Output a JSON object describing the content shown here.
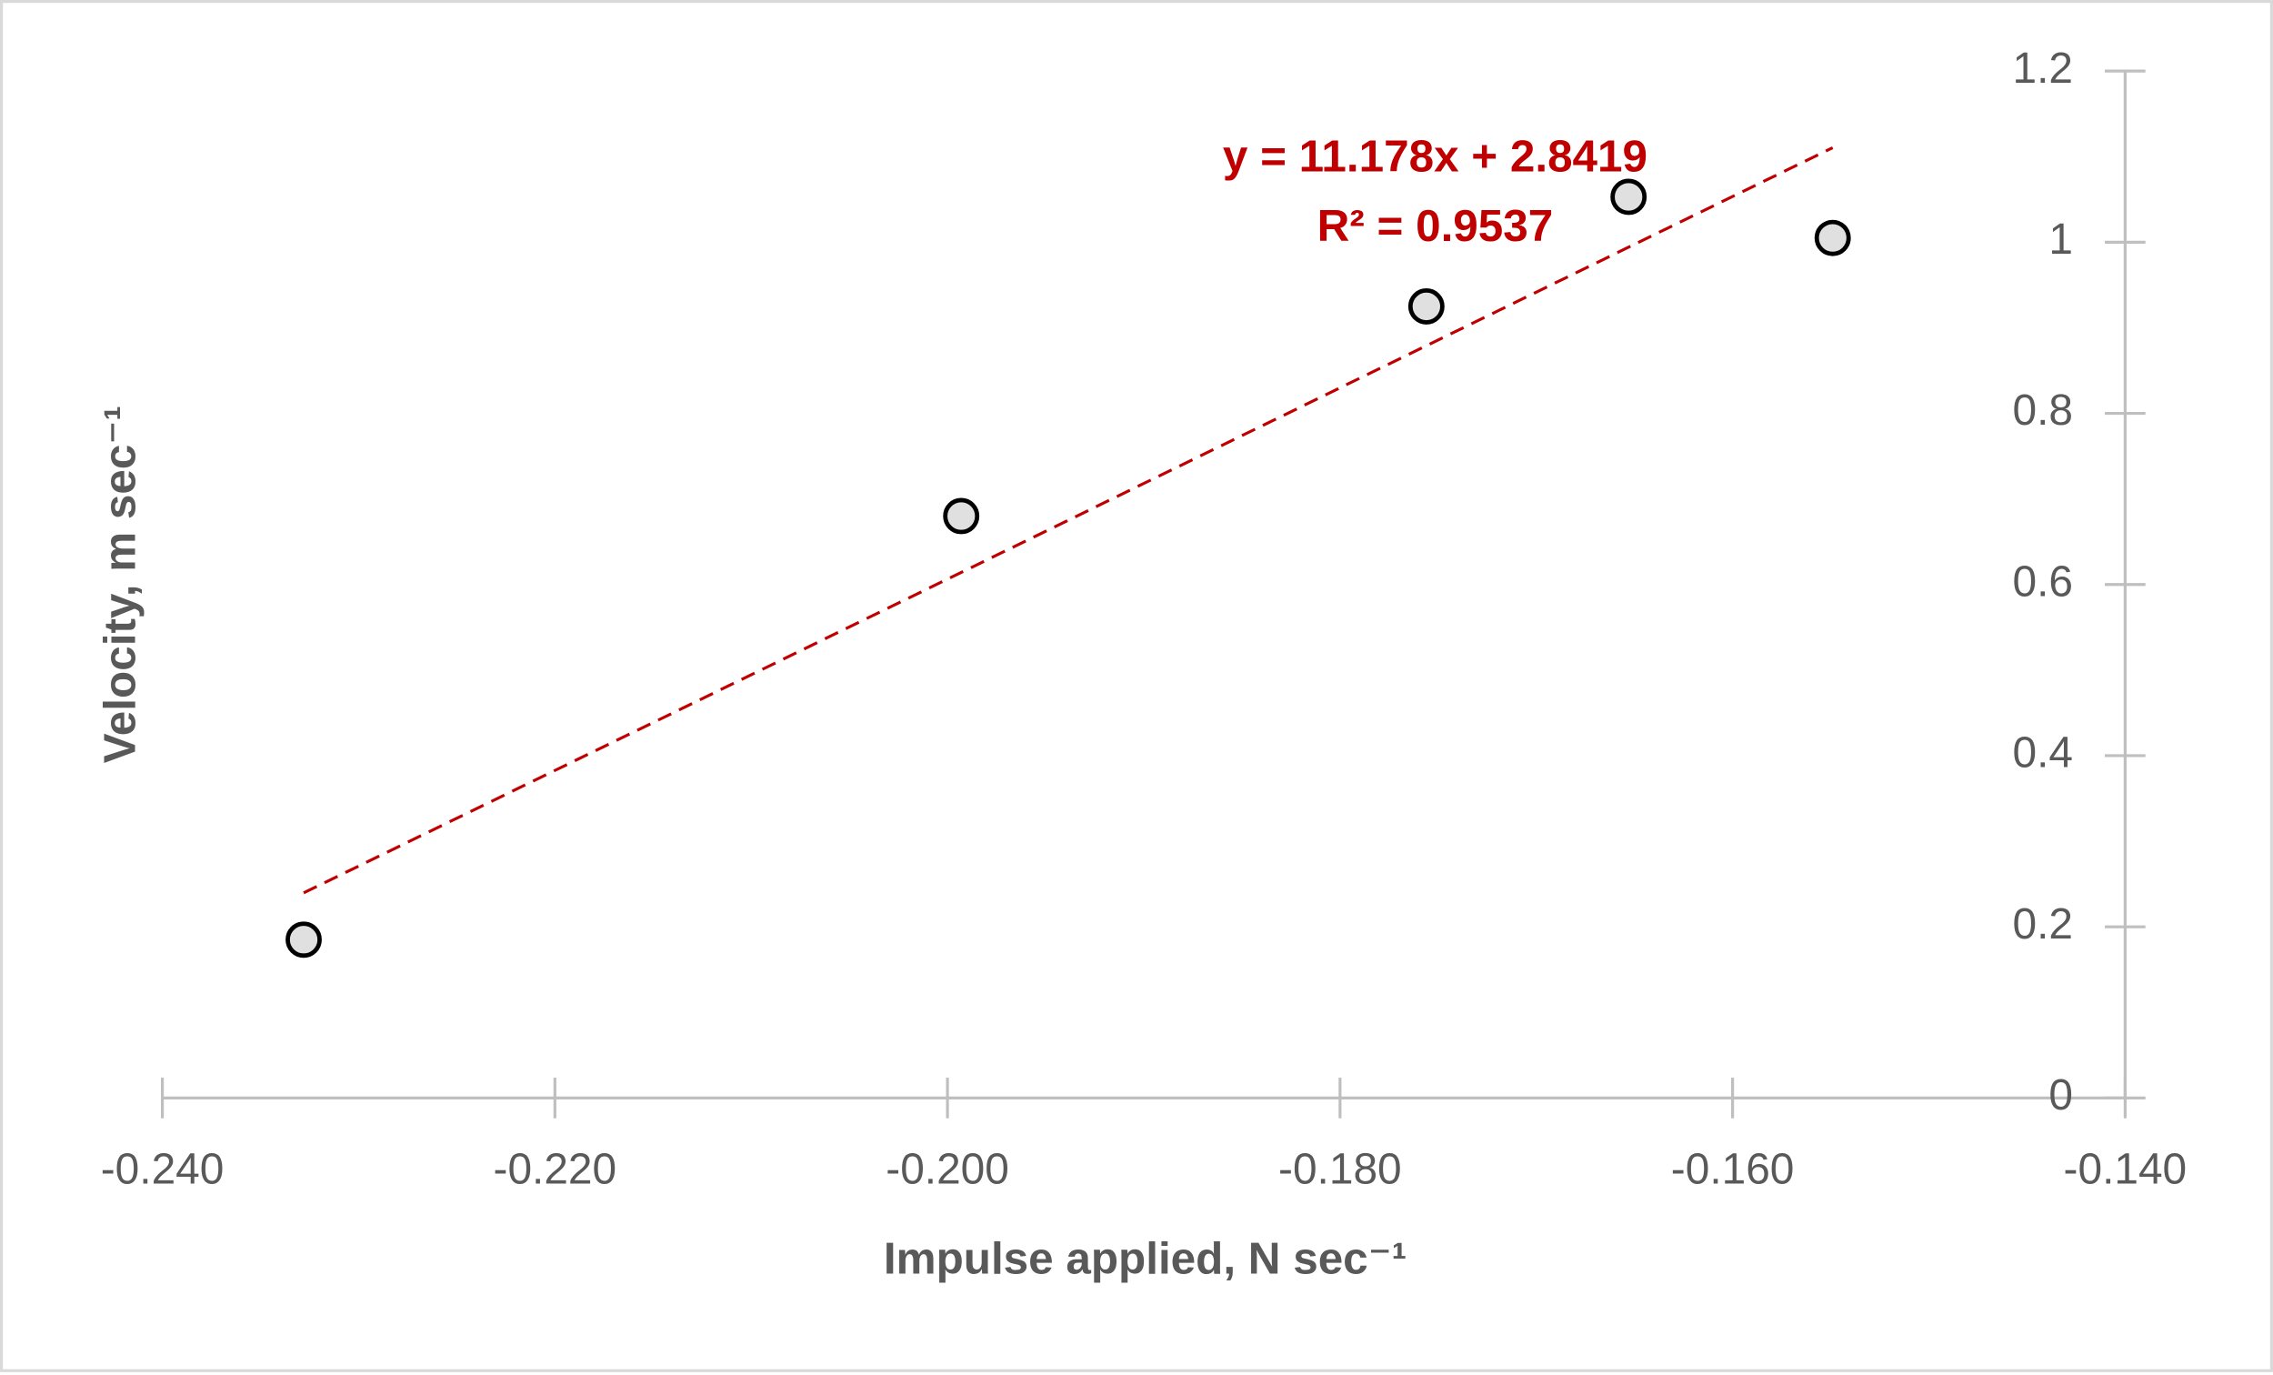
{
  "chart_data": {
    "type": "scatter",
    "x_label": "Impulse applied, N sec⁻¹",
    "y_label": "Velocity, m sec⁻¹",
    "x": [
      -0.2328,
      -0.1993,
      -0.1756,
      -0.1653,
      -0.1549
    ],
    "series": [
      {
        "name": "Velocity",
        "color": "#e0e0e0",
        "values": [
          0.185,
          0.68,
          0.925,
          1.053,
          1.005
        ]
      }
    ],
    "xlim": [
      -0.24,
      -0.14
    ],
    "xticks": [
      {
        "value": -0.24,
        "label": "-0.240"
      },
      {
        "value": -0.22,
        "label": "-0.220"
      },
      {
        "value": -0.2,
        "label": "-0.200"
      },
      {
        "value": -0.18,
        "label": "-0.180"
      },
      {
        "value": -0.16,
        "label": "-0.160"
      },
      {
        "value": -0.14,
        "label": "-0.140"
      }
    ],
    "ylim": [
      0,
      1.2
    ],
    "yticks": [
      0,
      0.2,
      0.4,
      0.6,
      0.8,
      1,
      1.2
    ],
    "trendline": {
      "slope": 11.178,
      "intercept": 2.8419,
      "color": "#c00000",
      "equation": "y = 11.178x + 2.8419",
      "r_squared": "R² = 0.9537"
    }
  }
}
